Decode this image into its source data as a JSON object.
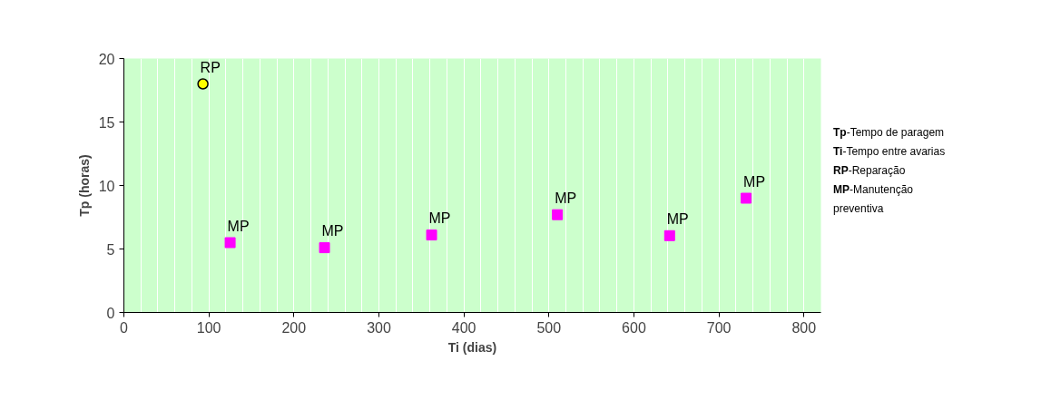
{
  "chart_data": {
    "type": "scatter",
    "xlabel": "Ti (dias)",
    "ylabel": "Tp (horas)",
    "xlim": [
      0,
      820
    ],
    "xticks": [
      0,
      100,
      200,
      300,
      400,
      500,
      600,
      700,
      800
    ],
    "ylim": [
      0,
      20
    ],
    "yticks": [
      0,
      5,
      10,
      15,
      20
    ],
    "grid": "x",
    "series": [
      {
        "color": "#ffff00",
        "marker": "circle",
        "x": [
          93
        ],
        "values": [
          18
        ]
      },
      {
        "color": "#ff00ff",
        "marker": "square",
        "x": [
          125,
          236,
          362,
          510,
          642,
          732
        ],
        "values": [
          5.5,
          5.1,
          6.1,
          7.7,
          6.05,
          9.0
        ]
      }
    ],
    "annotations": [
      {
        "text": "RP",
        "x": 93,
        "y": 18
      },
      {
        "text": "MP",
        "x": 125,
        "y": 5.5
      },
      {
        "text": "MP",
        "x": 236,
        "y": 5.1
      },
      {
        "text": "MP",
        "x": 362,
        "y": 6.1
      },
      {
        "text": "MP",
        "x": 510,
        "y": 7.7
      },
      {
        "text": "MP",
        "x": 642,
        "y": 6.05
      },
      {
        "text": "MP",
        "x": 732,
        "y": 9.0
      },
      "Tp-Tempo de paragem",
      "Ti-Tempo entre avarias",
      "RP-Reparação",
      "MP-Manutenção preventiva"
    ]
  }
}
